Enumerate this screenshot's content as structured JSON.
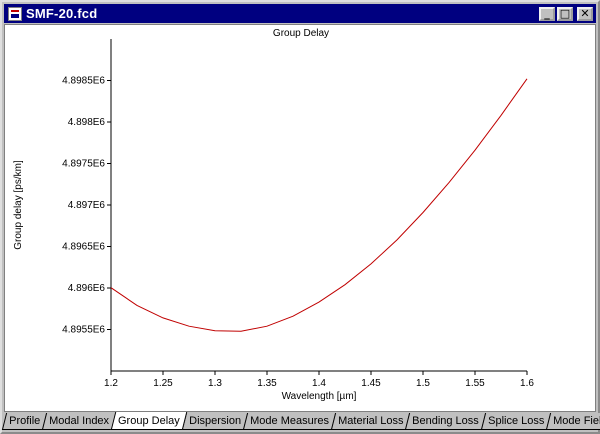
{
  "window": {
    "title": "SMF-20.fcd",
    "minimize_glyph": "_",
    "maximize_glyph": "□",
    "close_glyph": "✕"
  },
  "tabs": [
    {
      "label": "Profile",
      "active": false
    },
    {
      "label": "Modal Index",
      "active": false
    },
    {
      "label": "Group Delay",
      "active": true
    },
    {
      "label": "Dispersion",
      "active": false
    },
    {
      "label": "Mode Measures",
      "active": false
    },
    {
      "label": "Material Loss",
      "active": false
    },
    {
      "label": "Bending Loss",
      "active": false
    },
    {
      "label": "Splice Loss",
      "active": false
    },
    {
      "label": "Mode Field",
      "active": false
    }
  ],
  "chart_data": {
    "type": "line",
    "title": "Group Delay",
    "xlabel": "Wavelength [µm]",
    "ylabel": "Group delay [ps/km]",
    "xlim": [
      1.2,
      1.6
    ],
    "ylim": [
      4895000.0,
      4899000.0
    ],
    "x_ticks": [
      {
        "value": 1.2,
        "label": "1.2"
      },
      {
        "value": 1.25,
        "label": "1.25"
      },
      {
        "value": 1.3,
        "label": "1.3"
      },
      {
        "value": 1.35,
        "label": "1.35"
      },
      {
        "value": 1.4,
        "label": "1.4"
      },
      {
        "value": 1.45,
        "label": "1.45"
      },
      {
        "value": 1.5,
        "label": "1.5"
      },
      {
        "value": 1.55,
        "label": "1.55"
      },
      {
        "value": 1.6,
        "label": "1.6"
      }
    ],
    "y_ticks": [
      {
        "value": 4895500.0,
        "label": "4.8955E6"
      },
      {
        "value": 4896000.0,
        "label": "4.896E6"
      },
      {
        "value": 4896500.0,
        "label": "4.8965E6"
      },
      {
        "value": 4897000.0,
        "label": "4.897E6"
      },
      {
        "value": 4897500.0,
        "label": "4.8975E6"
      },
      {
        "value": 4898000.0,
        "label": "4.898E6"
      },
      {
        "value": 4898500.0,
        "label": "4.8985E6"
      }
    ],
    "grid": false,
    "series": [
      {
        "color": "#c00000",
        "x": [
          1.2,
          1.225,
          1.25,
          1.275,
          1.3,
          1.325,
          1.35,
          1.375,
          1.4,
          1.425,
          1.45,
          1.475,
          1.5,
          1.525,
          1.55,
          1.575,
          1.6
        ],
        "y": [
          4896004,
          4895790,
          4895640,
          4895540,
          4895485,
          4895480,
          4895540,
          4895660,
          4895830,
          4896040,
          4896290,
          4896580,
          4896910,
          4897270,
          4897660,
          4898080,
          4898520
        ]
      }
    ]
  }
}
